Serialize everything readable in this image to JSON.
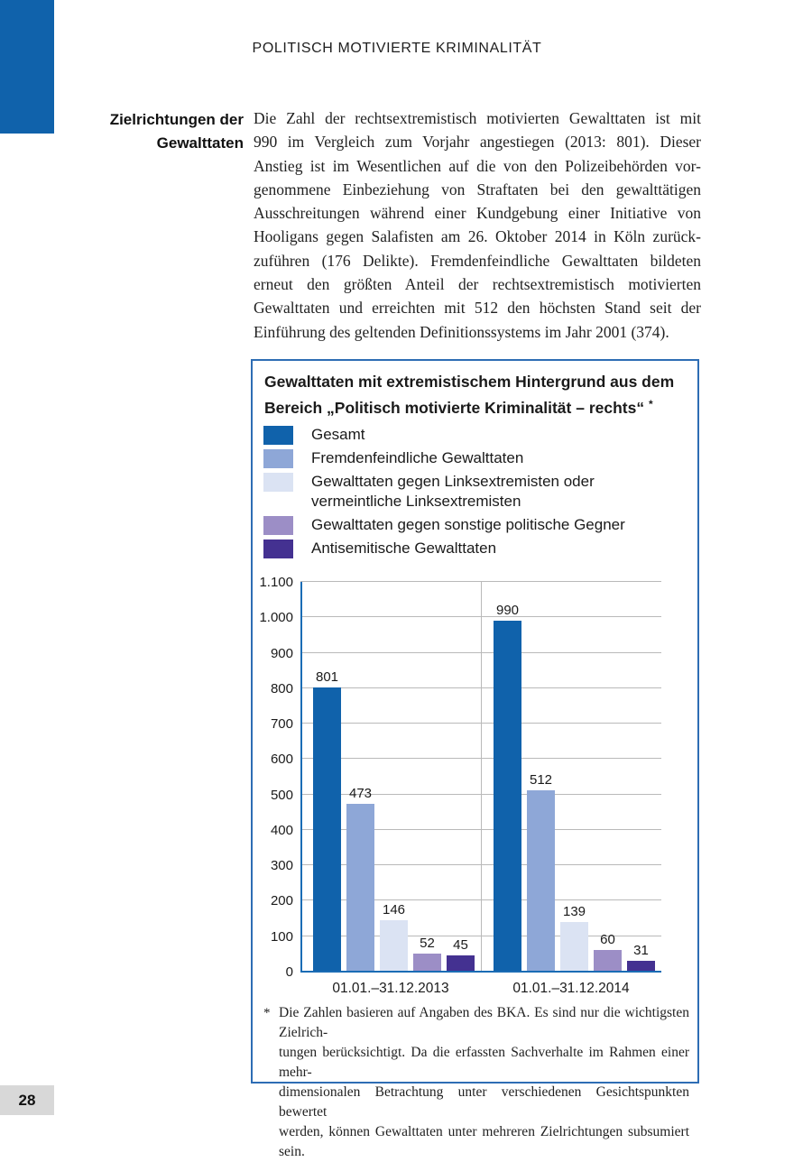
{
  "page": {
    "number": "28"
  },
  "header": {
    "title": "POLITISCH MOTIVIERTE KRIMINALITÄT"
  },
  "sidebar_label": {
    "lines": [
      "Zielrichtungen der",
      "Gewalttaten"
    ]
  },
  "paragraph": {
    "lines": [
      "Die Zahl der rechtsextremistisch motivierten Gewalttaten ist mit",
      "990 im Vergleich zum Vorjahr angestiegen (2013: 801). Dieser",
      "Anstieg ist im Wesentlichen auf die von den Polizeibehörden vor-",
      "genommene Einbeziehung von Straftaten bei den gewalttätigen",
      "Ausschreitungen während einer Kundgebung einer Initiative von",
      "Hooligans gegen Salafisten am 26. Oktober 2014 in Köln zurück-",
      "zuführen (176 Delikte). Fremdenfeindliche Gewalttaten bildeten",
      "erneut den größten Anteil der rechtsextremistisch motivierten",
      "Gewalttaten und erreichten mit 512 den höchsten Stand seit der",
      "Einführung des geltenden Definitionssystems im Jahr 2001 (374)."
    ]
  },
  "figure": {
    "title_lines": [
      "Gewalttaten mit extremistischem Hintergrund aus dem",
      "Bereich „Politisch motivierte Kriminalität – rechts“"
    ],
    "title_footnote_marker": "*",
    "footnote": {
      "marker": "*",
      "lines": [
        "Die Zahlen basieren auf Angaben des BKA. Es sind nur die wichtigsten Zielrich-",
        "tungen berücksichtigt. Da die erfassten Sachverhalte im Rahmen einer mehr-",
        "dimensionalen Betrachtung unter verschiedenen Gesichtspunkten bewertet",
        "werden, können Gewalttaten unter mehreren Zielrichtungen subsumiert sein."
      ]
    }
  },
  "chart_data": {
    "type": "bar",
    "categories": [
      "01.01.–31.12.2013",
      "01.01.–31.12.2014"
    ],
    "series": [
      {
        "name": "Gesamt",
        "color": "#1062ab",
        "values": [
          801,
          990
        ]
      },
      {
        "name": "Fremdenfeindliche Gewalttaten",
        "color": "#8ea7d7",
        "values": [
          473,
          512
        ]
      },
      {
        "name": "Gewalttaten gegen Linksextremisten oder vermeintliche Linksextremisten",
        "color": "#dbe3f3",
        "values": [
          146,
          139
        ]
      },
      {
        "name": "Gewalttaten gegen sonstige politische Gegner",
        "color": "#9c8ec6",
        "values": [
          52,
          60
        ]
      },
      {
        "name": "Antisemitische Gewalttaten",
        "color": "#443191",
        "values": [
          45,
          31
        ]
      }
    ],
    "ylim": [
      0,
      1100
    ],
    "grid": true,
    "legend_position": "top",
    "yticks": [
      {
        "value": 0,
        "label": "0"
      },
      {
        "value": 100,
        "label": "100"
      },
      {
        "value": 200,
        "label": "200"
      },
      {
        "value": 300,
        "label": "300"
      },
      {
        "value": 400,
        "label": "400"
      },
      {
        "value": 500,
        "label": "500"
      },
      {
        "value": 600,
        "label": "600"
      },
      {
        "value": 700,
        "label": "700"
      },
      {
        "value": 800,
        "label": "800"
      },
      {
        "value": 900,
        "label": "900"
      },
      {
        "value": 1000,
        "label": "1.000"
      },
      {
        "value": 1100,
        "label": "1.100"
      }
    ]
  }
}
